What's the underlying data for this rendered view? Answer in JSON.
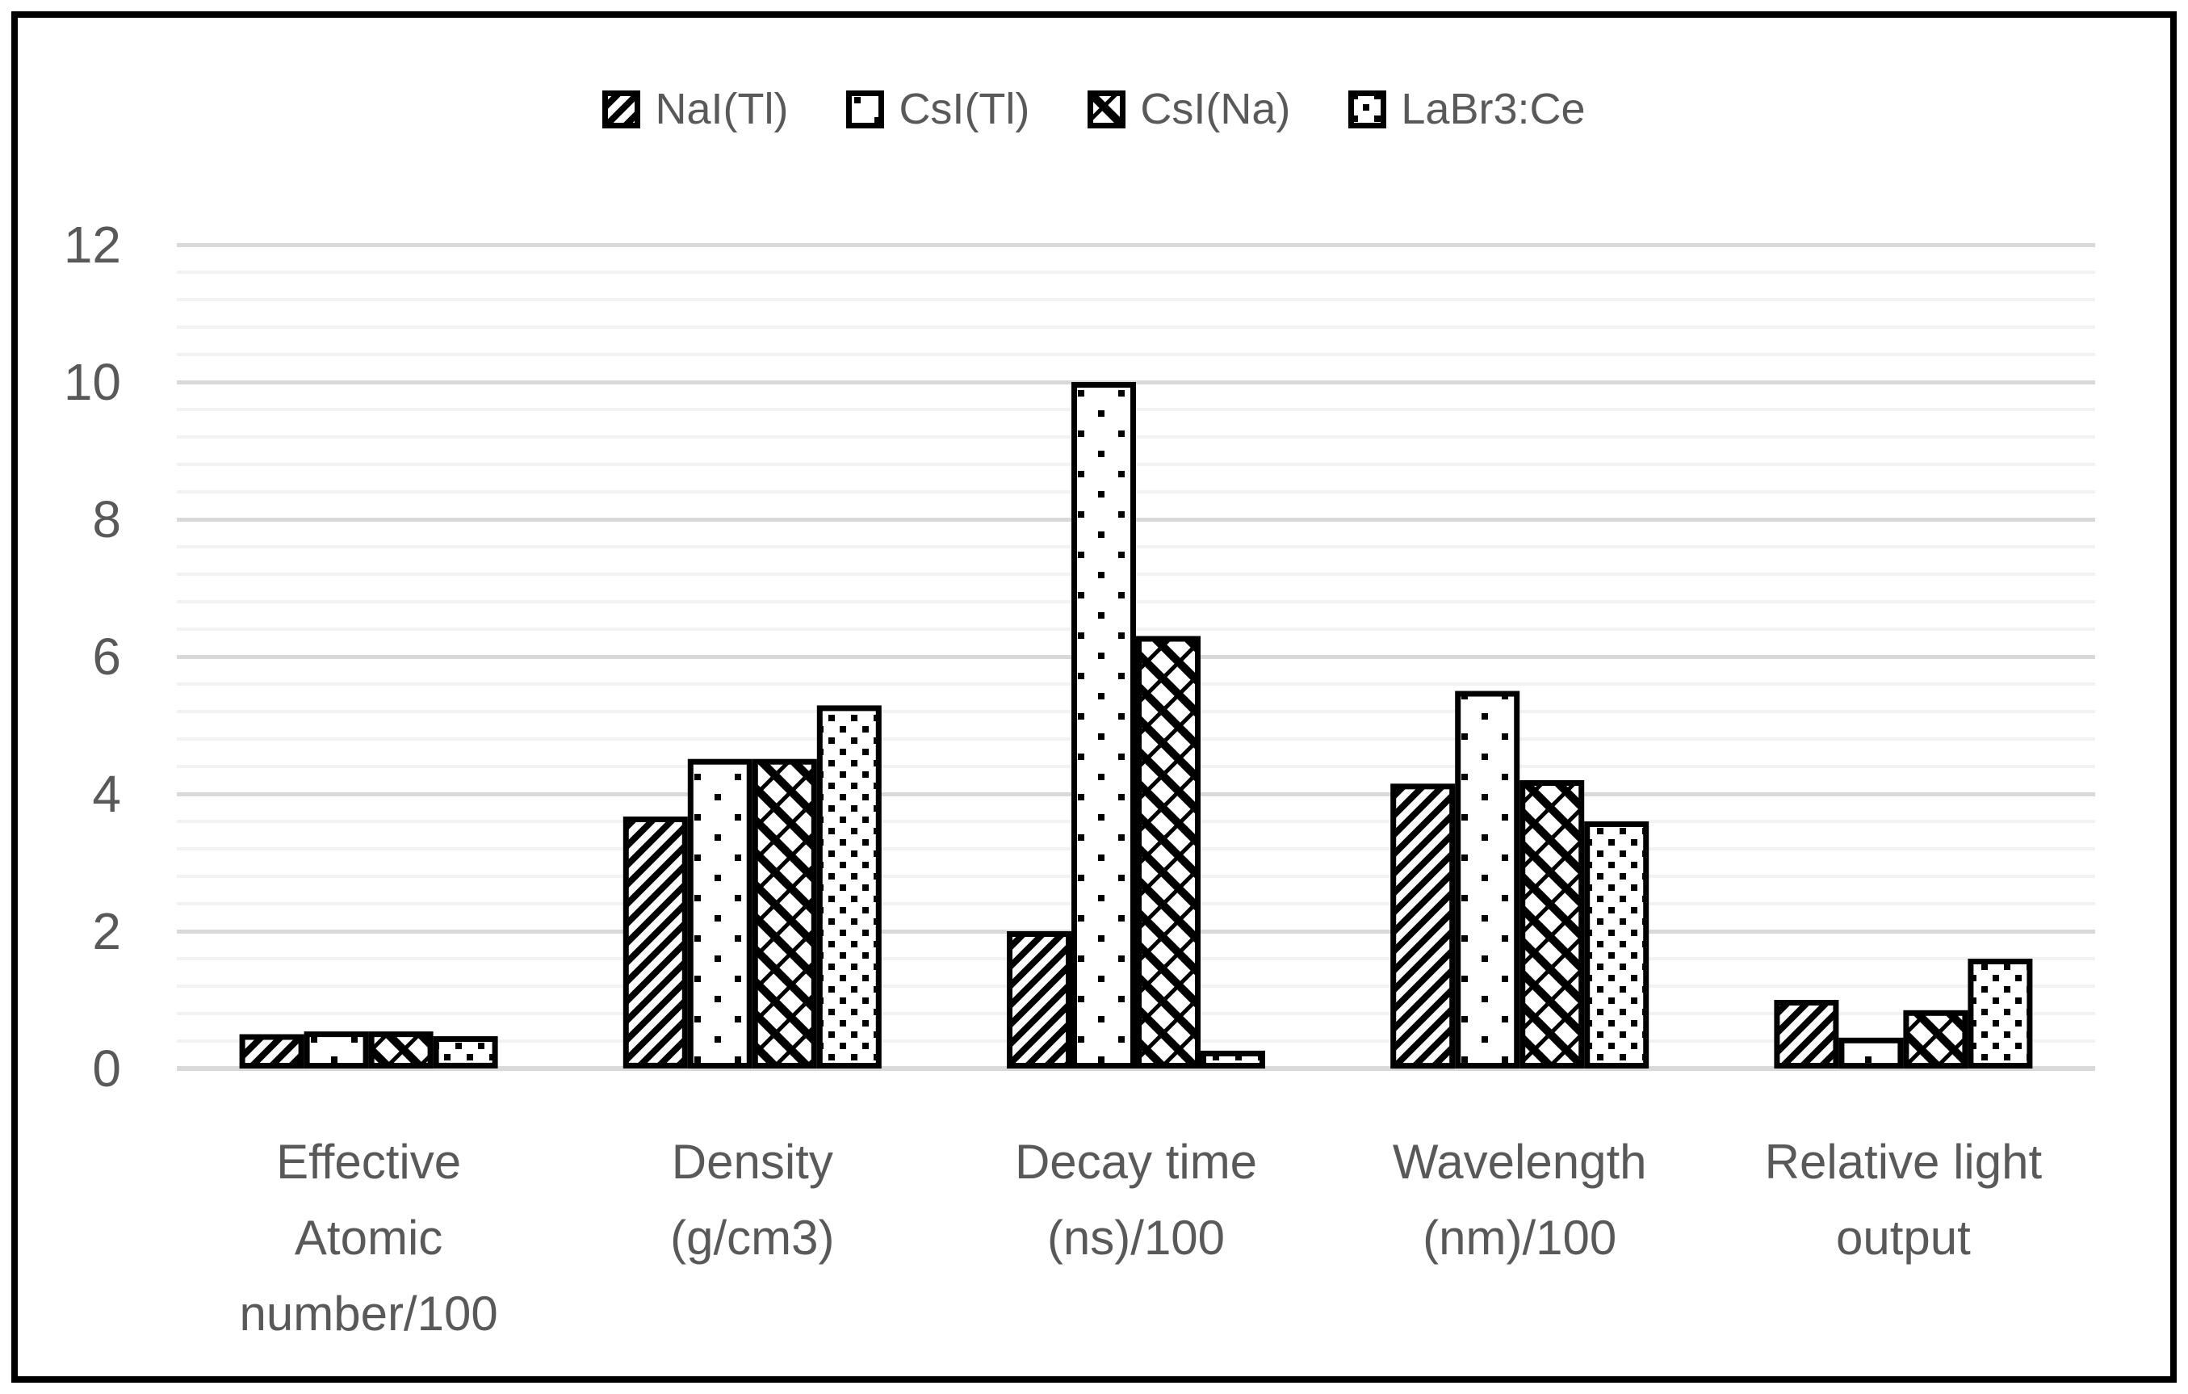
{
  "figure": {
    "background": "#ffffff",
    "frame_color": "#000000"
  },
  "colors": {
    "text": "#595959",
    "grid_major": "#d9d9d9",
    "grid_minor": "#f2f2f2",
    "bar_fill": "#ffffff",
    "bar_stroke": "#000000"
  },
  "chart_data": {
    "type": "bar",
    "title": "",
    "xlabel": "",
    "ylabel": "",
    "legend_position": "top",
    "grid": true,
    "ylim": [
      0,
      12
    ],
    "y_major_unit": 2,
    "y_minor_unit": 0.4,
    "y_ticks": [
      0,
      2,
      4,
      6,
      8,
      10,
      12
    ],
    "categories": [
      {
        "label": "Effective Atomic number/100",
        "lines": [
          "Effective",
          "Atomic",
          "number/100"
        ]
      },
      {
        "label": "Density (g/cm3)",
        "lines": [
          "Density",
          "(g/cm3)"
        ]
      },
      {
        "label": "Decay time (ns)/100",
        "lines": [
          "Decay time",
          "(ns)/100"
        ]
      },
      {
        "label": "Wavelength (nm)/100",
        "lines": [
          "Wavelength",
          "(nm)/100"
        ]
      },
      {
        "label": "Relative light output",
        "lines": [
          "Relative light",
          "output"
        ]
      }
    ],
    "series": [
      {
        "name": "NaI(Tl)",
        "pattern": "diagonal-stripes",
        "values": [
          0.5,
          3.67,
          2.0,
          4.15,
          1.0
        ]
      },
      {
        "name": "CsI(Tl)",
        "pattern": "sparse-dots",
        "values": [
          0.54,
          4.51,
          10.0,
          5.5,
          0.45
        ]
      },
      {
        "name": "CsI(Na)",
        "pattern": "diagonal-lattice",
        "values": [
          0.54,
          4.51,
          6.3,
          4.2,
          0.85
        ]
      },
      {
        "name": "LaBr3:Ce",
        "pattern": "dense-dots",
        "values": [
          0.47,
          5.29,
          0.26,
          3.6,
          1.6
        ]
      }
    ]
  }
}
